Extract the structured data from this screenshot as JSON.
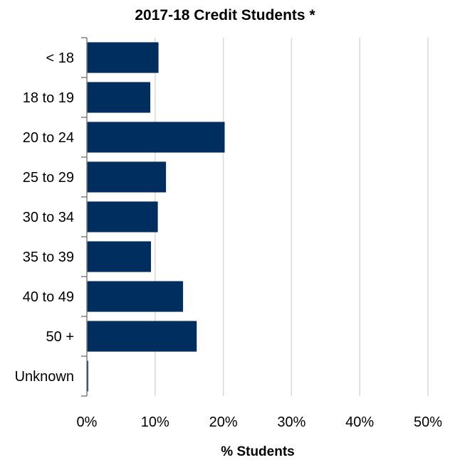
{
  "chart_data": {
    "type": "bar",
    "orientation": "horizontal",
    "title": "2017-18 Credit Students *",
    "xlabel": "% Students",
    "ylabel": "",
    "categories": [
      "< 18",
      "18 to 19",
      "20 to 24",
      "25 to 29",
      "30 to 34",
      "35 to 39",
      "40 to 49",
      "50 +",
      "Unknown"
    ],
    "values": [
      10.5,
      9.3,
      20.2,
      11.6,
      10.4,
      9.4,
      14.1,
      16.1,
      0.2
    ],
    "xlim": [
      0,
      50
    ],
    "x_ticks": [
      0,
      10,
      20,
      30,
      40,
      50
    ],
    "x_tick_labels": [
      "0%",
      "10%",
      "20%",
      "30%",
      "40%",
      "50%"
    ],
    "value_unit": "%",
    "grid": "vertical",
    "legend": "none",
    "bar_color": "#002F5F",
    "grid_color": "#D9D9D9",
    "axis_color": "#7F7F7F"
  }
}
